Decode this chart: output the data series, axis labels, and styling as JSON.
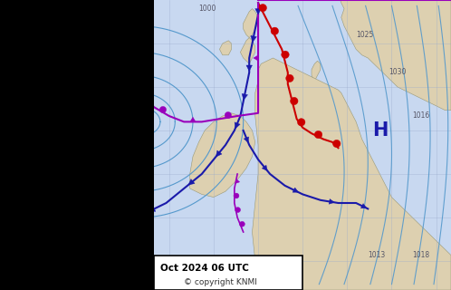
{
  "ocean_color": "#c8d8f0",
  "land_color": "#ddd0b0",
  "black_bg": "#000000",
  "label_date": "Oct 2024 06 UTC",
  "label_copyright": "© copyright KNMI",
  "low_color": "#cc0000",
  "high_color": "#1a1aaa",
  "front_cold_color": "#1a1aaa",
  "front_warm_color": "#cc0000",
  "front_occluded_color": "#9900bb",
  "isobar_color": "#5599cc",
  "grid_color": "#99aacc",
  "label_color": "#555566",
  "label_box_color": "#ffffff",
  "label_box_edge": "#000000",
  "figsize": [
    4.98,
    3.2
  ],
  "dpi": 100
}
